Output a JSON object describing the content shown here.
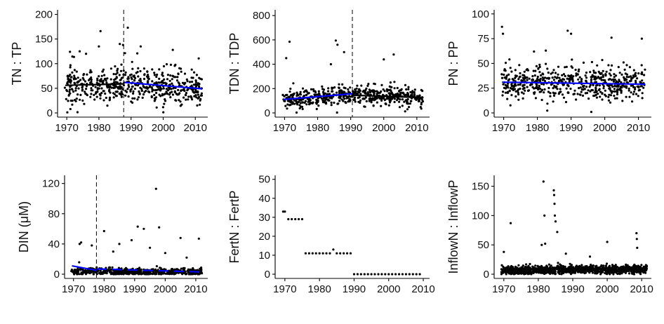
{
  "colors": {
    "points": "#000000",
    "trend": "#0000ff",
    "axis": "#000000",
    "breakpoint": "#000000"
  },
  "chart_data": [
    {
      "type": "scatter",
      "ylabel": "TN : TP",
      "xlim": [
        1968,
        2013
      ],
      "ylim": [
        0,
        205
      ],
      "xticks": [
        1970,
        1980,
        1990,
        2000,
        2010
      ],
      "xtick_labels": [
        "1970",
        "1980",
        "1990",
        "2000",
        "2010"
      ],
      "yticks": [
        0,
        50,
        100,
        150,
        200
      ],
      "ytick_labels": [
        "0",
        "50",
        "100",
        "150",
        "200"
      ],
      "breakpoint_x": 1987.7,
      "trend_segments": [
        {
          "x": [
            1969.5,
            1987.7
          ],
          "y": [
            56,
            59
          ],
          "color": "black"
        },
        {
          "x": [
            1987.7,
            2012
          ],
          "y": [
            62,
            49
          ],
          "color": "blue"
        }
      ],
      "points": {
        "x_range": [
          1969.3,
          2012
        ],
        "center": [
          56,
          61,
          47
        ],
        "spread": 22,
        "count": 560,
        "seed": 11,
        "extras": [
          [
            1980.5,
            166
          ],
          [
            1989,
            173
          ],
          [
            1986.5,
            140
          ],
          [
            1987.5,
            138
          ],
          [
            1980,
            135
          ],
          [
            1974,
            125
          ],
          [
            1976,
            120
          ],
          [
            2003,
            128
          ],
          [
            1971,
            124
          ],
          [
            1993,
            135
          ]
        ]
      }
    },
    {
      "type": "scatter",
      "ylabel": "TDN : TDP",
      "xlim": [
        1968,
        2013
      ],
      "ylim": [
        0,
        830
      ],
      "xticks": [
        1970,
        1980,
        1990,
        2000,
        2010
      ],
      "xtick_labels": [
        "1970",
        "1980",
        "1990",
        "2000",
        "2010"
      ],
      "yticks": [
        0,
        200,
        400,
        600,
        800
      ],
      "ytick_labels": [
        "0",
        "200",
        "400",
        "600",
        "800"
      ],
      "breakpoint_x": 1990.5,
      "trend_segments": [
        {
          "x": [
            1969.5,
            1990.5
          ],
          "y": [
            110,
            158
          ],
          "color": "blue"
        },
        {
          "x": [
            1990.5,
            2012
          ],
          "y": [
            145,
            125
          ],
          "color": "black"
        }
      ],
      "points": {
        "x_range": [
          1969.3,
          2012
        ],
        "center": [
          110,
          158,
          122
        ],
        "spread": 45,
        "count": 560,
        "seed": 23,
        "extras": [
          [
            1971.5,
            585
          ],
          [
            1985.5,
            595
          ],
          [
            1986,
            560
          ],
          [
            1970.5,
            450
          ],
          [
            2000,
            440
          ],
          [
            2003,
            480
          ],
          [
            1988,
            500
          ],
          [
            1984,
            400
          ]
        ]
      }
    },
    {
      "type": "scatter",
      "ylabel": "PN : PP",
      "xlim": [
        1968,
        2013
      ],
      "ylim": [
        0,
        102
      ],
      "xticks": [
        1970,
        1980,
        1990,
        2000,
        2010
      ],
      "xtick_labels": [
        "1970",
        "1980",
        "1990",
        "2000",
        "2010"
      ],
      "yticks": [
        0,
        25,
        50,
        75,
        100
      ],
      "ytick_labels": [
        "0",
        "25",
        "50",
        "75",
        "100"
      ],
      "breakpoint_x": null,
      "trend_segments": [
        {
          "x": [
            1969.5,
            2012
          ],
          "y": [
            31,
            29
          ],
          "color": "blue"
        }
      ],
      "points": {
        "x_range": [
          1969.3,
          2012
        ],
        "center": [
          31,
          30,
          29
        ],
        "spread": 10,
        "count": 560,
        "seed": 37,
        "extras": [
          [
            1969.5,
            87
          ],
          [
            1969.8,
            80
          ],
          [
            1989,
            83
          ],
          [
            1990,
            80
          ],
          [
            2002,
            76
          ],
          [
            2011,
            75
          ],
          [
            1982.5,
            63
          ],
          [
            1979,
            62
          ],
          [
            1996,
            1
          ]
        ]
      }
    },
    {
      "type": "scatter",
      "ylabel": "DIN (μM)",
      "xlim": [
        1968,
        2013
      ],
      "ylim": [
        0,
        128
      ],
      "xticks": [
        1970,
        1980,
        1990,
        2000,
        2010
      ],
      "xtick_labels": [
        "1970",
        "1980",
        "1990",
        "2000",
        "2010"
      ],
      "yticks": [
        0,
        40,
        80,
        120
      ],
      "ytick_labels": [
        "0",
        "40",
        "80",
        "120"
      ],
      "breakpoint_x": 1977.5,
      "trend_segments": [
        {
          "x": [
            1969.5,
            1977.5
          ],
          "y": [
            11,
            5
          ],
          "color": "blue"
        },
        {
          "x": [
            1977.5,
            2012
          ],
          "y": [
            7,
            3
          ],
          "color": "blue",
          "dashed": true
        }
      ],
      "points": {
        "x_range": [
          1969.3,
          2012
        ],
        "center": [
          4,
          3,
          3
        ],
        "spread": 3,
        "count": 560,
        "seed": 51,
        "extras": [
          [
            1997,
            113
          ],
          [
            1998,
            62
          ],
          [
            1991,
            63
          ],
          [
            1993,
            60
          ],
          [
            1972,
            40
          ],
          [
            1972.5,
            42
          ],
          [
            1980,
            57
          ],
          [
            1985,
            40
          ],
          [
            1989,
            45
          ],
          [
            2005,
            48
          ],
          [
            2011,
            47
          ],
          [
            1976,
            38
          ],
          [
            1983,
            30
          ],
          [
            1995,
            35
          ],
          [
            2000,
            28
          ],
          [
            2007,
            22
          ]
        ]
      }
    },
    {
      "type": "scatter",
      "ylabel": "FertN : FertP",
      "xlim": [
        1968,
        2011
      ],
      "ylim": [
        0,
        51
      ],
      "xticks": [
        1970,
        1980,
        1990,
        2000,
        2010
      ],
      "xtick_labels": [
        "1970",
        "1980",
        "1990",
        "2000",
        "2010"
      ],
      "yticks": [
        0,
        10,
        20,
        30,
        40,
        50
      ],
      "ytick_labels": [
        "0",
        "10",
        "20",
        "30",
        "40",
        "50"
      ],
      "breakpoint_x": null,
      "trend_segments": [],
      "annual_values": [
        [
          1969.5,
          33
        ],
        [
          1970,
          33
        ],
        [
          1971,
          29
        ],
        [
          1972,
          29
        ],
        [
          1973,
          29
        ],
        [
          1974,
          29
        ],
        [
          1975,
          29
        ],
        [
          1976,
          11
        ],
        [
          1977,
          11
        ],
        [
          1978,
          11
        ],
        [
          1979,
          11
        ],
        [
          1980,
          11
        ],
        [
          1981,
          11
        ],
        [
          1982,
          11
        ],
        [
          1983,
          11
        ],
        [
          1984,
          13
        ],
        [
          1985,
          11
        ],
        [
          1986,
          11
        ],
        [
          1987,
          11
        ],
        [
          1988,
          11
        ],
        [
          1989,
          11
        ],
        [
          1990,
          0
        ],
        [
          1991,
          0
        ],
        [
          1992,
          0
        ],
        [
          1993,
          0
        ],
        [
          1994,
          0
        ],
        [
          1995,
          0
        ],
        [
          1996,
          0
        ],
        [
          1997,
          0
        ],
        [
          1998,
          0
        ],
        [
          1999,
          0
        ],
        [
          2000,
          0
        ],
        [
          2001,
          0
        ],
        [
          2002,
          0
        ],
        [
          2003,
          0
        ],
        [
          2004,
          0
        ],
        [
          2005,
          0
        ],
        [
          2006,
          0
        ],
        [
          2007,
          0
        ],
        [
          2008,
          0
        ],
        [
          2009,
          0
        ]
      ]
    },
    {
      "type": "scatter",
      "ylabel": "InflowN : InflowP",
      "xlim": [
        1968,
        2012
      ],
      "ylim": [
        0,
        165
      ],
      "xticks": [
        1970,
        1980,
        1990,
        2000,
        2010
      ],
      "xtick_labels": [
        "1970",
        "1980",
        "1990",
        "2000",
        "2010"
      ],
      "yticks": [
        0,
        50,
        100,
        150
      ],
      "ytick_labels": [
        "0",
        "50",
        "100",
        "150"
      ],
      "breakpoint_x": null,
      "trend_segments": [],
      "points": {
        "x_range": [
          1969.3,
          2011.5
        ],
        "center": [
          6,
          8,
          8
        ],
        "spread": 4,
        "count": 1100,
        "seed": 67,
        "extras": [
          [
            1981.5,
            158
          ],
          [
            1984.5,
            143
          ],
          [
            1984.6,
            135
          ],
          [
            1984.7,
            120
          ],
          [
            1984.8,
            100
          ],
          [
            1981.8,
            100
          ],
          [
            1985,
            90
          ],
          [
            1972,
            87
          ],
          [
            1985.5,
            72
          ],
          [
            2000,
            55
          ],
          [
            2008.5,
            70
          ],
          [
            2008.6,
            60
          ],
          [
            2008.7,
            45
          ],
          [
            1981,
            50
          ],
          [
            1982,
            52
          ],
          [
            1970,
            38
          ],
          [
            1988,
            35
          ],
          [
            1995,
            30
          ]
        ]
      }
    }
  ]
}
